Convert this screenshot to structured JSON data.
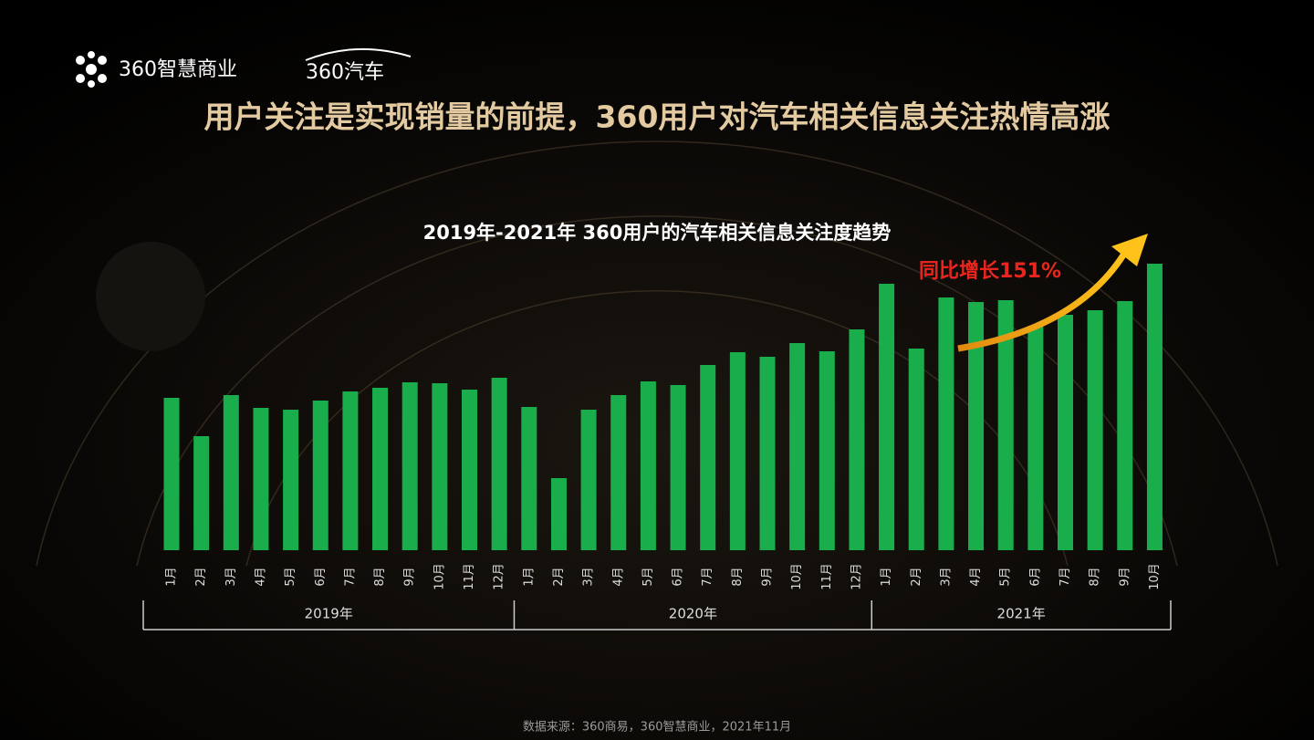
{
  "header": {
    "brand": "360智慧商业",
    "partner": "360汽车",
    "headline": "用户关注是实现销量的前提，360用户对汽车相关信息关注热情高涨"
  },
  "chart_data": {
    "type": "bar",
    "title": "2019年-2021年 360用户的汽车相关信息关注度趋势",
    "annotation": "同比增长151%",
    "color": "#1aad4b",
    "groups": [
      {
        "name": "2019年",
        "categories": [
          "1月",
          "2月",
          "3月",
          "4月",
          "5月",
          "6月",
          "7月",
          "8月",
          "9月",
          "10月",
          "11月",
          "12月"
        ],
        "values": [
          167,
          125,
          170,
          156,
          154,
          164,
          174,
          178,
          184,
          183,
          176,
          189
        ]
      },
      {
        "name": "2020年",
        "categories": [
          "1月",
          "2月",
          "3月",
          "4月",
          "5月",
          "6月",
          "7月",
          "8月",
          "9月",
          "10月",
          "11月",
          "12月"
        ],
        "values": [
          157,
          79,
          154,
          170,
          185,
          181,
          203,
          217,
          212,
          227,
          218,
          242
        ]
      },
      {
        "name": "2021年",
        "categories": [
          "1月",
          "2月",
          "3月",
          "4月",
          "5月",
          "6月",
          "7月",
          "8月",
          "9月",
          "10月"
        ],
        "values": [
          292,
          221,
          277,
          272,
          274,
          245,
          258,
          263,
          273,
          314
        ]
      }
    ]
  },
  "footer": {
    "source": "数据来源：360商易，360智慧商业，2021年11月"
  }
}
